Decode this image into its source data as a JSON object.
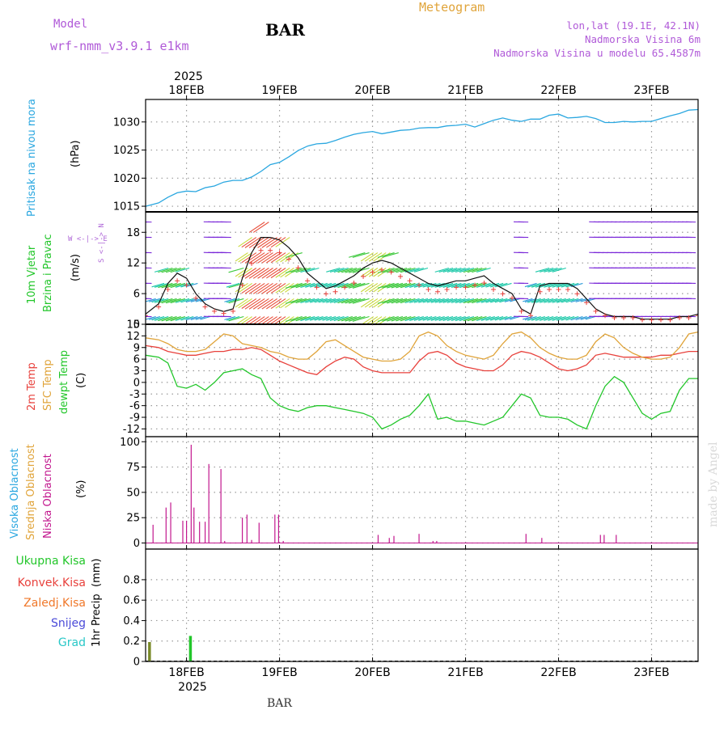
{
  "header": {
    "model_label": "Model",
    "model_name": "wrf-nmm_v3.9.1 e1km",
    "station": "BAR",
    "title": "Meteogram",
    "coords": "lon,lat (19.1E, 42.1N)",
    "elevation": "Nadmorska Visina 6m",
    "model_elevation": "Nadmorska Visina u modelu 65.4587m",
    "footer_station": "BAR",
    "watermark": "made by Angel"
  },
  "x_axis": {
    "year": "2025",
    "ticks": [
      "18FEB",
      "19FEB",
      "20FEB",
      "21FEB",
      "22FEB",
      "23FEB"
    ],
    "start_day": 17.56,
    "end_day": 23.5,
    "tick_days": [
      18,
      19,
      20,
      21,
      22,
      23
    ]
  },
  "colors": {
    "pressure": "#2aa7e0",
    "t2m": "#e8413c",
    "sfc": "#e0a43a",
    "dewpt": "#22c62a",
    "low_cloud": "#c2178e",
    "total_rain": "#22c62a",
    "conv_rain": "#e8413c",
    "frz_rain": "#f0782a",
    "snow": "#4a4ad8",
    "grad": "#2ac8c8",
    "wind_purple": "#7a28d8",
    "wind_dir_label": "#b06ad8"
  },
  "chart_data": [
    {
      "type": "line",
      "ylabel_lines": [
        "Pritisak na nivou mora"
      ],
      "unit": "(hPa)",
      "ylim": [
        1014,
        1034
      ],
      "yticks": [
        1015,
        1020,
        1025,
        1030
      ],
      "series": [
        {
          "x": [
            17.56,
            17.7,
            17.8,
            17.9,
            18.0,
            18.1,
            18.2,
            18.3,
            18.4,
            18.5,
            18.6,
            18.7,
            18.8,
            18.9,
            19.0,
            19.1,
            19.2,
            19.3,
            19.4,
            19.5,
            19.6,
            19.7,
            19.8,
            19.9,
            20.0,
            20.1,
            20.2,
            20.3,
            20.4,
            20.5,
            20.6,
            20.7,
            20.8,
            20.9,
            21.0,
            21.1,
            21.2,
            21.3,
            21.4,
            21.5,
            21.6,
            21.7,
            21.8,
            21.9,
            22.0,
            22.1,
            22.2,
            22.3,
            22.4,
            22.5,
            22.6,
            22.7,
            22.8,
            22.9,
            23.0,
            23.1,
            23.2,
            23.3,
            23.4,
            23.5
          ],
          "values": [
            1015.0,
            1015.6,
            1016.6,
            1017.4,
            1017.7,
            1017.6,
            1018.3,
            1018.6,
            1019.3,
            1019.6,
            1019.6,
            1020.2,
            1021.2,
            1022.4,
            1022.8,
            1023.8,
            1024.9,
            1025.7,
            1026.1,
            1026.2,
            1026.7,
            1027.3,
            1027.8,
            1028.1,
            1028.3,
            1027.9,
            1028.2,
            1028.5,
            1028.6,
            1028.9,
            1029.0,
            1029.0,
            1029.3,
            1029.4,
            1029.6,
            1029.1,
            1029.7,
            1030.3,
            1030.7,
            1030.3,
            1030.1,
            1030.5,
            1030.5,
            1031.2,
            1031.4,
            1030.7,
            1030.8,
            1031.0,
            1030.6,
            1029.9,
            1029.9,
            1030.1,
            1030.0,
            1030.1,
            1030.1,
            1030.6,
            1031.1,
            1031.5,
            1032.1,
            1032.2
          ]
        }
      ]
    },
    {
      "type": "barbs",
      "ylabel_lines": [
        "10m Vjetar",
        "Brzina i Pravac"
      ],
      "unit": "(m/s)",
      "ylim": [
        0,
        22
      ],
      "yticks": [
        0,
        6,
        12,
        18
      ],
      "compass": "W <-|-> E",
      "compass_vertical": "S <-|-> N",
      "series": [
        {
          "name": "speed",
          "x": [
            17.56,
            17.7,
            17.8,
            17.9,
            18.0,
            18.1,
            18.2,
            18.3,
            18.4,
            18.5,
            18.6,
            18.7,
            18.8,
            18.9,
            19.0,
            19.1,
            19.2,
            19.3,
            19.4,
            19.5,
            19.6,
            19.7,
            19.8,
            19.9,
            20.0,
            20.1,
            20.2,
            20.3,
            20.4,
            20.5,
            20.6,
            20.7,
            20.8,
            20.9,
            21.0,
            21.1,
            21.2,
            21.3,
            21.4,
            21.5,
            21.6,
            21.7,
            21.8,
            21.9,
            22.0,
            22.1,
            22.2,
            22.3,
            22.4,
            22.5,
            22.6,
            22.7,
            22.8,
            22.9,
            23.0,
            23.1,
            23.2,
            23.3,
            23.4,
            23.5
          ],
          "values": [
            2.0,
            4.0,
            8.0,
            10.0,
            9.0,
            6.0,
            4.0,
            3.0,
            2.5,
            3.0,
            9.0,
            14.0,
            17.0,
            17.0,
            16.5,
            15.0,
            13.0,
            10.0,
            8.5,
            7.0,
            7.5,
            8.5,
            9.5,
            11.0,
            12.0,
            12.5,
            12.0,
            11.0,
            10.0,
            9.0,
            8.0,
            7.5,
            8.0,
            8.5,
            8.5,
            9.0,
            9.5,
            8.0,
            7.0,
            6.0,
            3.0,
            2.0,
            7.5,
            8.0,
            8.0,
            8.0,
            7.0,
            5.0,
            3.0,
            2.0,
            1.5,
            1.5,
            1.5,
            1.0,
            1.0,
            1.0,
            1.0,
            1.5,
            1.5,
            2.0
          ]
        }
      ]
    },
    {
      "type": "line",
      "ylabel_lines": [
        "2m Temp",
        "SFC Temp",
        "dewpt Temp"
      ],
      "unit": "(C)",
      "ylim": [
        -14,
        15
      ],
      "yticks": [
        -12,
        -9,
        -6,
        -3,
        0,
        3,
        6,
        9,
        12,
        15
      ],
      "series": [
        {
          "name": "2m Temp",
          "x": [
            17.56,
            17.7,
            17.8,
            17.9,
            18.0,
            18.1,
            18.2,
            18.3,
            18.4,
            18.5,
            18.6,
            18.7,
            18.8,
            18.9,
            19.0,
            19.1,
            19.2,
            19.3,
            19.4,
            19.5,
            19.6,
            19.7,
            19.8,
            19.9,
            20.0,
            20.1,
            20.2,
            20.3,
            20.4,
            20.5,
            20.6,
            20.7,
            20.8,
            20.9,
            21.0,
            21.1,
            21.2,
            21.3,
            21.4,
            21.5,
            21.6,
            21.7,
            21.8,
            21.9,
            22.0,
            22.1,
            22.2,
            22.3,
            22.4,
            22.5,
            22.6,
            22.7,
            22.8,
            22.9,
            23.0,
            23.1,
            23.2,
            23.3,
            23.4,
            23.5
          ],
          "values": [
            9.5,
            9.0,
            8.0,
            7.5,
            7.0,
            7.0,
            7.5,
            8.0,
            8.0,
            8.5,
            8.5,
            9.0,
            8.5,
            7.0,
            5.5,
            4.5,
            3.5,
            2.5,
            2.0,
            4.0,
            5.5,
            6.5,
            6.0,
            4.0,
            3.0,
            2.5,
            2.5,
            2.5,
            2.5,
            5.5,
            7.5,
            8.0,
            7.0,
            5.0,
            4.0,
            3.5,
            3.0,
            3.0,
            4.5,
            7.0,
            8.0,
            7.5,
            6.5,
            5.0,
            3.5,
            3.0,
            3.5,
            4.5,
            7.0,
            7.5,
            7.0,
            6.5,
            6.5,
            6.5,
            6.5,
            7.0,
            7.0,
            7.5,
            8.0,
            8.0
          ]
        },
        {
          "name": "SFC Temp",
          "x": [
            17.56,
            17.7,
            17.8,
            17.9,
            18.0,
            18.1,
            18.2,
            18.3,
            18.4,
            18.5,
            18.6,
            18.7,
            18.8,
            18.9,
            19.0,
            19.1,
            19.2,
            19.3,
            19.4,
            19.5,
            19.6,
            19.7,
            19.8,
            19.9,
            20.0,
            20.1,
            20.2,
            20.3,
            20.4,
            20.5,
            20.6,
            20.7,
            20.8,
            20.9,
            21.0,
            21.1,
            21.2,
            21.3,
            21.4,
            21.5,
            21.6,
            21.7,
            21.8,
            21.9,
            22.0,
            22.1,
            22.2,
            22.3,
            22.4,
            22.5,
            22.6,
            22.7,
            22.8,
            22.9,
            23.0,
            23.1,
            23.2,
            23.3,
            23.4,
            23.5
          ],
          "values": [
            11.5,
            11.0,
            10.0,
            8.5,
            8.0,
            8.0,
            8.5,
            10.5,
            12.5,
            12.0,
            10.0,
            9.5,
            9.0,
            8.0,
            7.5,
            6.5,
            6.0,
            6.0,
            8.0,
            10.5,
            11.0,
            9.5,
            8.0,
            6.5,
            6.0,
            5.5,
            5.5,
            6.0,
            8.0,
            12.0,
            13.0,
            12.0,
            9.5,
            8.0,
            7.0,
            6.5,
            6.0,
            7.0,
            10.0,
            12.5,
            13.0,
            11.5,
            9.0,
            7.5,
            6.5,
            6.0,
            6.0,
            7.0,
            10.5,
            12.5,
            11.5,
            9.0,
            7.5,
            6.5,
            6.0,
            6.0,
            6.5,
            9.0,
            12.5,
            13.0
          ]
        },
        {
          "name": "dewpt Temp",
          "x": [
            17.56,
            17.7,
            17.8,
            17.9,
            18.0,
            18.1,
            18.2,
            18.3,
            18.4,
            18.5,
            18.6,
            18.7,
            18.8,
            18.9,
            19.0,
            19.1,
            19.2,
            19.3,
            19.4,
            19.5,
            19.6,
            19.7,
            19.8,
            19.9,
            20.0,
            20.1,
            20.2,
            20.3,
            20.4,
            20.5,
            20.6,
            20.7,
            20.8,
            20.9,
            21.0,
            21.1,
            21.2,
            21.3,
            21.4,
            21.5,
            21.6,
            21.7,
            21.8,
            21.9,
            22.0,
            22.1,
            22.2,
            22.3,
            22.4,
            22.5,
            22.6,
            22.7,
            22.8,
            22.9,
            23.0,
            23.1,
            23.2,
            23.3,
            23.4,
            23.5
          ],
          "values": [
            7.0,
            6.5,
            5.0,
            -1.0,
            -1.5,
            -0.5,
            -2.0,
            0.0,
            2.5,
            3.0,
            3.5,
            2.0,
            1.0,
            -4.0,
            -6.0,
            -7.0,
            -7.5,
            -6.5,
            -6.0,
            -6.0,
            -6.5,
            -7.0,
            -7.5,
            -8.0,
            -9.0,
            -12.0,
            -11.0,
            -9.5,
            -8.5,
            -6.0,
            -3.0,
            -9.5,
            -9.0,
            -10.0,
            -10.0,
            -10.5,
            -11.0,
            -10.0,
            -9.0,
            -6.0,
            -3.0,
            -4.0,
            -8.5,
            -9.0,
            -9.0,
            -9.5,
            -11.0,
            -12.0,
            -6.0,
            -1.0,
            1.5,
            0.0,
            -4.0,
            -8.0,
            -9.5,
            -8.0,
            -7.5,
            -2.0,
            1.0,
            1.0
          ]
        }
      ]
    },
    {
      "type": "bar",
      "ylabel_lines": [
        "Visoka Oblacnost",
        "Srednja Oblacnost",
        "Niska Oblacnost"
      ],
      "unit": "(%)",
      "ylim": [
        -6,
        105
      ],
      "yticks": [
        0,
        25,
        50,
        75,
        100
      ],
      "series": [
        {
          "name": "Niska Oblacnost",
          "x": [
            17.64,
            17.78,
            17.83,
            17.96,
            18.0,
            18.05,
            18.08,
            18.14,
            18.2,
            18.24,
            18.37,
            18.41,
            18.6,
            18.65,
            18.7,
            18.78,
            18.95,
            18.99,
            19.04,
            20.06,
            20.18,
            20.23,
            20.5,
            20.65,
            20.69,
            21.65,
            21.82,
            22.45,
            22.49,
            22.62
          ],
          "values": [
            18,
            35,
            40,
            22,
            22,
            97,
            35,
            21,
            21,
            78,
            73,
            2,
            25,
            28,
            3,
            20,
            28,
            28,
            2,
            8,
            5,
            7,
            9,
            2,
            2,
            9,
            5,
            8,
            8,
            8
          ]
        }
      ]
    },
    {
      "type": "bar",
      "ylabel_lines": [
        "1hr Precip"
      ],
      "unit": "(mm)",
      "ylim": [
        0,
        1.1
      ],
      "yticks": [
        0,
        0.2,
        0.4,
        0.6,
        0.8
      ],
      "legend": [
        "Ukupna Kisa",
        "Konvek.Kisa",
        "Zaledj.Kisa",
        "Snijeg",
        "Grad"
      ],
      "series": [
        {
          "name": "Ukupna Kisa",
          "x": [
            17.6,
            18.04
          ],
          "values": [
            0.19,
            0.25
          ]
        }
      ]
    }
  ]
}
